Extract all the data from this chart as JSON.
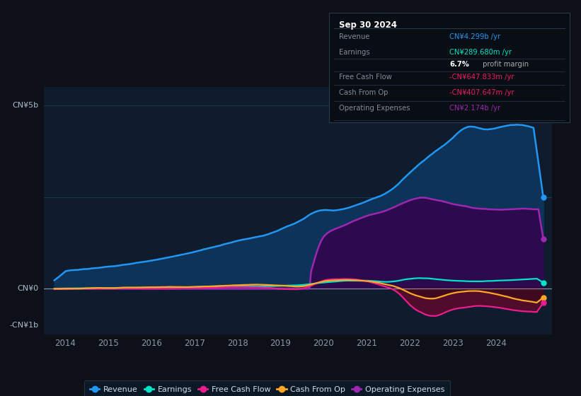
{
  "background_color": "#0d1117",
  "chart_bg_color": "#0f1c2e",
  "ylim": [
    -1.25,
    5.5
  ],
  "xlim": [
    2013.5,
    2025.3
  ],
  "xticks": [
    2014,
    2015,
    2016,
    2017,
    2018,
    2019,
    2020,
    2021,
    2022,
    2023,
    2024
  ],
  "ylabel_top": "CN¥5b",
  "ylabel_zero": "CN¥0",
  "ylabel_neg": "-CN¥1b",
  "series_colors": {
    "revenue": "#2196f3",
    "earnings": "#00e5c8",
    "free_cash_flow": "#e91e8c",
    "cash_from_op": "#ffa726",
    "operating_expenses": "#9c27b0"
  },
  "fill_colors": {
    "revenue": "#0d3358",
    "operating_expenses": "#2d0a4e",
    "fcf_neg": "#5c0a2a",
    "cop_neg": "#3a0a1a"
  },
  "tooltip": {
    "date": "Sep 30 2024",
    "rows": [
      {
        "label": "Revenue",
        "value": "CN¥4.299b /yr",
        "color": "#2196f3"
      },
      {
        "label": "Earnings",
        "value": "CN¥289.680m /yr",
        "color": "#00e5c8"
      },
      {
        "label": "",
        "value": "6.7% profit margin",
        "color": "#aaaaaa",
        "bold_prefix": "6.7%"
      },
      {
        "label": "Free Cash Flow",
        "value": "-CN¥647.833m /yr",
        "color": "#e91e63"
      },
      {
        "label": "Cash From Op",
        "value": "-CN¥407.647m /yr",
        "color": "#e91e63"
      },
      {
        "label": "Operating Expenses",
        "value": "CN¥2.174b /yr",
        "color": "#9c27b0"
      }
    ]
  },
  "legend": [
    {
      "label": "Revenue",
      "color": "#2196f3"
    },
    {
      "label": "Earnings",
      "color": "#00e5c8"
    },
    {
      "label": "Free Cash Flow",
      "color": "#e91e8c"
    },
    {
      "label": "Cash From Op",
      "color": "#ffa726"
    },
    {
      "label": "Operating Expenses",
      "color": "#9c27b0"
    }
  ]
}
